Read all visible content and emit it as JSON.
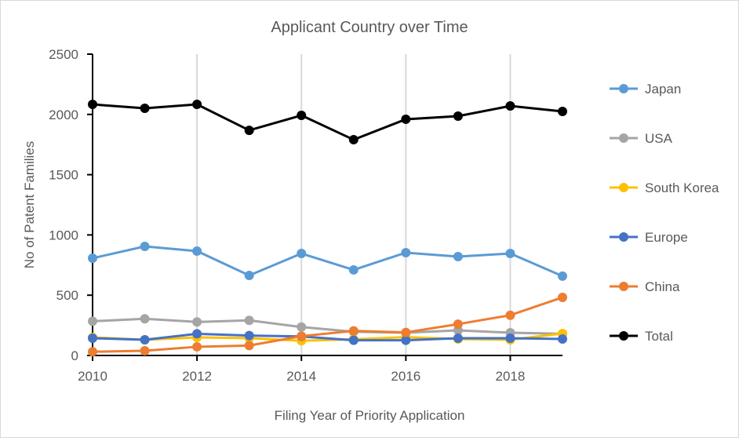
{
  "chart_data": {
    "type": "line",
    "title": "Applicant Country over Time",
    "xlabel": "Filing Year of Priority Application",
    "ylabel": "No of Patent Families",
    "x": [
      2010,
      2011,
      2012,
      2013,
      2014,
      2015,
      2016,
      2017,
      2018,
      2019
    ],
    "xticks": [
      "2010",
      "2012",
      "2014",
      "2016",
      "2018"
    ],
    "xlim": [
      2010,
      2019
    ],
    "ylim": [
      0,
      2500
    ],
    "yticks": [
      "0",
      "500",
      "1000",
      "1500",
      "2000",
      "2500"
    ],
    "grid": "vertical",
    "legend_position": "right",
    "series": [
      {
        "name": "Japan",
        "color": "#5b9bd5",
        "values": [
          807,
          905,
          866,
          664,
          846,
          710,
          853,
          820,
          846,
          658
        ]
      },
      {
        "name": "USA",
        "color": "#a5a5a5",
        "values": [
          284,
          304,
          278,
          291,
          236,
          197,
          189,
          208,
          189,
          180
        ]
      },
      {
        "name": "South Korea",
        "color": "#ffc000",
        "values": [
          150,
          130,
          150,
          143,
          122,
          134,
          152,
          137,
          130,
          182
        ]
      },
      {
        "name": "Europe",
        "color": "#4472c4",
        "values": [
          143,
          130,
          180,
          165,
          158,
          126,
          126,
          143,
          143,
          137
        ]
      },
      {
        "name": "China",
        "color": "#ed7d31",
        "values": [
          31,
          39,
          72,
          82,
          160,
          204,
          191,
          260,
          334,
          482
        ]
      },
      {
        "name": "Total",
        "color": "#000000",
        "values": [
          2083,
          2051,
          2083,
          1868,
          1992,
          1790,
          1960,
          1986,
          2070,
          2025
        ]
      }
    ]
  }
}
